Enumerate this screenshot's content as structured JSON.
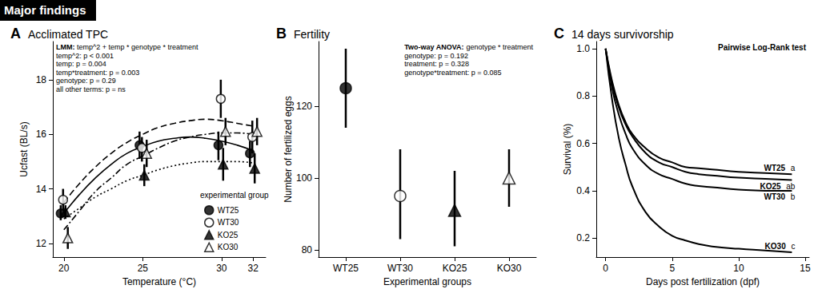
{
  "header": "Major findings",
  "chart_data": [
    {
      "panel": "A",
      "type": "scatter",
      "title": "Acclimated TPC",
      "x_label": "Temperature (°C)",
      "y_label": "Ucfast (BL/s)",
      "xlim": [
        19.3,
        32.8
      ],
      "xticks": [
        20,
        25,
        30,
        32
      ],
      "ylim": [
        11.5,
        19.4
      ],
      "yticks": [
        12,
        14,
        16,
        18
      ],
      "annotation": [
        "LMM: temp^2 + temp * genotype * treatment",
        "temp^2: p < 0.001",
        "temp: p = 0.004",
        "temp*treatment: p = 0.003",
        "genotype: p = 0.29",
        "all other terms: p = ns"
      ],
      "legend": "lower right",
      "legend_title": "experimental group",
      "series": [
        {
          "name": "WT25",
          "color": "#000000",
          "marker": "circle",
          "line_style": "solid",
          "x": [
            19.8,
            24.8,
            29.8,
            31.8
          ],
          "values": [
            13.1,
            15.6,
            15.6,
            15.3
          ],
          "error_low": [
            12.85,
            15.1,
            15.05,
            14.8
          ],
          "error_high": [
            13.4,
            16.1,
            16.1,
            15.75
          ],
          "curve_x": [
            20,
            21,
            22,
            23,
            24,
            25,
            26,
            27,
            28,
            29,
            30,
            31,
            32
          ],
          "curve_values": [
            13.1,
            13.8,
            14.4,
            14.9,
            15.3,
            15.55,
            15.75,
            15.85,
            15.9,
            15.85,
            15.75,
            15.6,
            15.4
          ]
        },
        {
          "name": "WT30",
          "color": "#000000",
          "marker": "open_circle",
          "line_style": "dashed",
          "x": [
            19.95,
            24.95,
            29.95,
            31.95
          ],
          "values": [
            13.6,
            15.5,
            17.3,
            15.9
          ],
          "error_low": [
            13.2,
            15.0,
            16.6,
            15.3
          ],
          "error_high": [
            14.0,
            15.9,
            18.0,
            16.5
          ],
          "curve_x": [
            20,
            21,
            22,
            23,
            24,
            25,
            26,
            27,
            28,
            29,
            30,
            31,
            32
          ],
          "curve_values": [
            13.5,
            14.2,
            14.8,
            15.3,
            15.7,
            16.0,
            16.25,
            16.4,
            16.5,
            16.55,
            16.5,
            16.4,
            16.3
          ]
        },
        {
          "name": "KO25",
          "color": "#000000",
          "marker": "triangle",
          "line_style": "dotted",
          "x": [
            20.1,
            25.1,
            30.1,
            32.1
          ],
          "values": [
            13.15,
            14.5,
            14.9,
            14.75
          ],
          "error_low": [
            12.9,
            14.1,
            14.3,
            14.2
          ],
          "error_high": [
            13.4,
            14.9,
            15.5,
            15.3
          ],
          "curve_x": [
            20,
            21,
            22,
            23,
            24,
            25,
            26,
            27,
            28,
            29,
            30,
            31,
            32
          ],
          "curve_values": [
            12.9,
            13.3,
            13.7,
            14.0,
            14.3,
            14.5,
            14.7,
            14.85,
            14.95,
            15.0,
            15.0,
            15.0,
            14.95
          ]
        },
        {
          "name": "KO30",
          "color": "#000000",
          "marker": "open_triangle",
          "line_style": "dashdot",
          "x": [
            20.25,
            25.25,
            30.25,
            32.25
          ],
          "values": [
            12.2,
            15.3,
            16.1,
            16.1
          ],
          "error_low": [
            11.8,
            14.8,
            15.6,
            15.6
          ],
          "error_high": [
            12.6,
            15.8,
            16.6,
            16.6
          ],
          "curve_x": [
            20,
            21,
            22,
            23,
            24,
            25,
            26,
            27,
            28,
            29,
            30,
            31,
            32
          ],
          "curve_values": [
            12.5,
            13.2,
            13.9,
            14.4,
            14.9,
            15.2,
            15.5,
            15.75,
            15.9,
            16.0,
            16.05,
            16.05,
            16.0
          ]
        }
      ]
    },
    {
      "panel": "B",
      "type": "scatter",
      "title": "Fertility",
      "x_label": "Experimental groups",
      "y_label": "Number of fertilized eggs",
      "categories": [
        "WT25",
        "WT30",
        "KO25",
        "KO30"
      ],
      "ylim": [
        78,
        138
      ],
      "yticks": [
        80,
        100,
        120
      ],
      "annotation": [
        "Two-way ANOVA: genotype * treatment",
        "genotype: p = 0.192",
        "treatment: p = 0.328",
        "genotype*treatment: p = 0.085"
      ],
      "series": [
        {
          "name": "WT25",
          "color": "#000000",
          "marker": "circle",
          "values": [
            125,
            null,
            null,
            null
          ],
          "error_low": [
            114,
            null,
            null,
            null
          ],
          "error_high": [
            136,
            null,
            null,
            null
          ]
        },
        {
          "name": "WT30",
          "color": "#000000",
          "marker": "open_circle",
          "values": [
            null,
            95,
            null,
            null
          ],
          "error_low": [
            null,
            83,
            null,
            null
          ],
          "error_high": [
            null,
            108,
            null,
            null
          ]
        },
        {
          "name": "KO25",
          "color": "#000000",
          "marker": "triangle",
          "values": [
            null,
            null,
            91,
            null
          ],
          "error_low": [
            null,
            null,
            81,
            null
          ],
          "error_high": [
            null,
            null,
            102,
            null
          ]
        },
        {
          "name": "KO30",
          "color": "#000000",
          "marker": "open_triangle",
          "values": [
            null,
            null,
            null,
            100
          ],
          "error_low": [
            null,
            null,
            null,
            92
          ],
          "error_high": [
            null,
            null,
            null,
            108
          ]
        }
      ]
    },
    {
      "panel": "C",
      "type": "line",
      "title": "14 days survivorship",
      "x_label": "Days post fertilization (dpf)",
      "y_label": "Survival (%)",
      "xlim": [
        -0.7,
        15.3
      ],
      "xticks": [
        0,
        5,
        10,
        15
      ],
      "ylim": [
        0.12,
        1.03
      ],
      "yticks": [
        0.2,
        0.4,
        0.6,
        0.8,
        {
          "value": 1,
          "label": "1.0"
        }
      ],
      "annotation": [
        "Pairwise Log-Rank test"
      ],
      "x": [
        0,
        0.5,
        1,
        1.5,
        2,
        3,
        4,
        5,
        6,
        7,
        8,
        10,
        12,
        14
      ],
      "series": [
        {
          "name": "WT25",
          "annotation": "a",
          "color": "#000000",
          "values": [
            1.0,
            0.86,
            0.76,
            0.69,
            0.64,
            0.58,
            0.54,
            0.52,
            0.5,
            0.495,
            0.49,
            0.48,
            0.475,
            0.47
          ]
        },
        {
          "name": "KO25",
          "annotation": "ab",
          "color": "#000000",
          "values": [
            1.0,
            0.85,
            0.75,
            0.68,
            0.63,
            0.56,
            0.52,
            0.5,
            0.48,
            0.47,
            0.465,
            0.455,
            0.45,
            0.445
          ]
        },
        {
          "name": "WT30",
          "annotation": "b",
          "color": "#000000",
          "values": [
            1.0,
            0.83,
            0.72,
            0.64,
            0.58,
            0.51,
            0.47,
            0.45,
            0.43,
            0.42,
            0.415,
            0.405,
            0.4,
            0.4
          ]
        },
        {
          "name": "KO30",
          "annotation": "c",
          "color": "#000000",
          "values": [
            1.0,
            0.78,
            0.62,
            0.51,
            0.42,
            0.31,
            0.25,
            0.21,
            0.19,
            0.175,
            0.165,
            0.155,
            0.148,
            0.14
          ]
        }
      ]
    }
  ]
}
